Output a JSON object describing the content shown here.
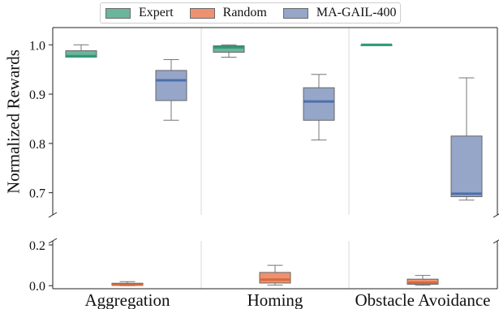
{
  "chart_data": {
    "type": "box",
    "ylabel": "Normalized Rewards",
    "categories": [
      "Aggregation",
      "Homing",
      "Obstacle Avoidance"
    ],
    "ylim_upper": [
      0.655,
      1.035
    ],
    "ylim_lower": [
      -0.015,
      0.22
    ],
    "yticks_upper": [
      "1.0",
      "0.9",
      "0.8",
      "0.7"
    ],
    "yticks_lower": [
      "0.2",
      "0.0"
    ],
    "legend_position": "top-center",
    "grid": "vertical separators between categories",
    "series": [
      {
        "name": "Expert",
        "color": "#6bb59c",
        "boxes": [
          {
            "whisker_low": 0.975,
            "q1": 0.975,
            "median": 0.977,
            "q3": 0.988,
            "whisker_high": 1.0
          },
          {
            "whisker_low": 0.975,
            "q1": 0.985,
            "median": 0.995,
            "q3": 0.998,
            "whisker_high": 1.0
          },
          {
            "whisker_low": 1.0,
            "q1": 1.0,
            "median": 1.0,
            "q3": 1.0,
            "whisker_high": 1.0
          }
        ]
      },
      {
        "name": "Random",
        "color": "#ee9170",
        "boxes": [
          {
            "whisker_low": 0.0,
            "q1": 0.002,
            "median": 0.005,
            "q3": 0.012,
            "whisker_high": 0.02
          },
          {
            "whisker_low": 0.003,
            "q1": 0.013,
            "median": 0.03,
            "q3": 0.065,
            "whisker_high": 0.1
          },
          {
            "whisker_low": 0.002,
            "q1": 0.007,
            "median": 0.015,
            "q3": 0.032,
            "whisker_high": 0.05
          }
        ]
      },
      {
        "name": "MA-GAIL-400",
        "color": "#95a6c9",
        "boxes": [
          {
            "whisker_low": 0.847,
            "q1": 0.887,
            "median": 0.928,
            "q3": 0.948,
            "whisker_high": 0.97
          },
          {
            "whisker_low": 0.807,
            "q1": 0.847,
            "median": 0.885,
            "q3": 0.913,
            "whisker_high": 0.94
          },
          {
            "whisker_low": 0.685,
            "q1": 0.692,
            "median": 0.698,
            "q3": 0.815,
            "whisker_high": 0.933
          }
        ]
      }
    ]
  }
}
